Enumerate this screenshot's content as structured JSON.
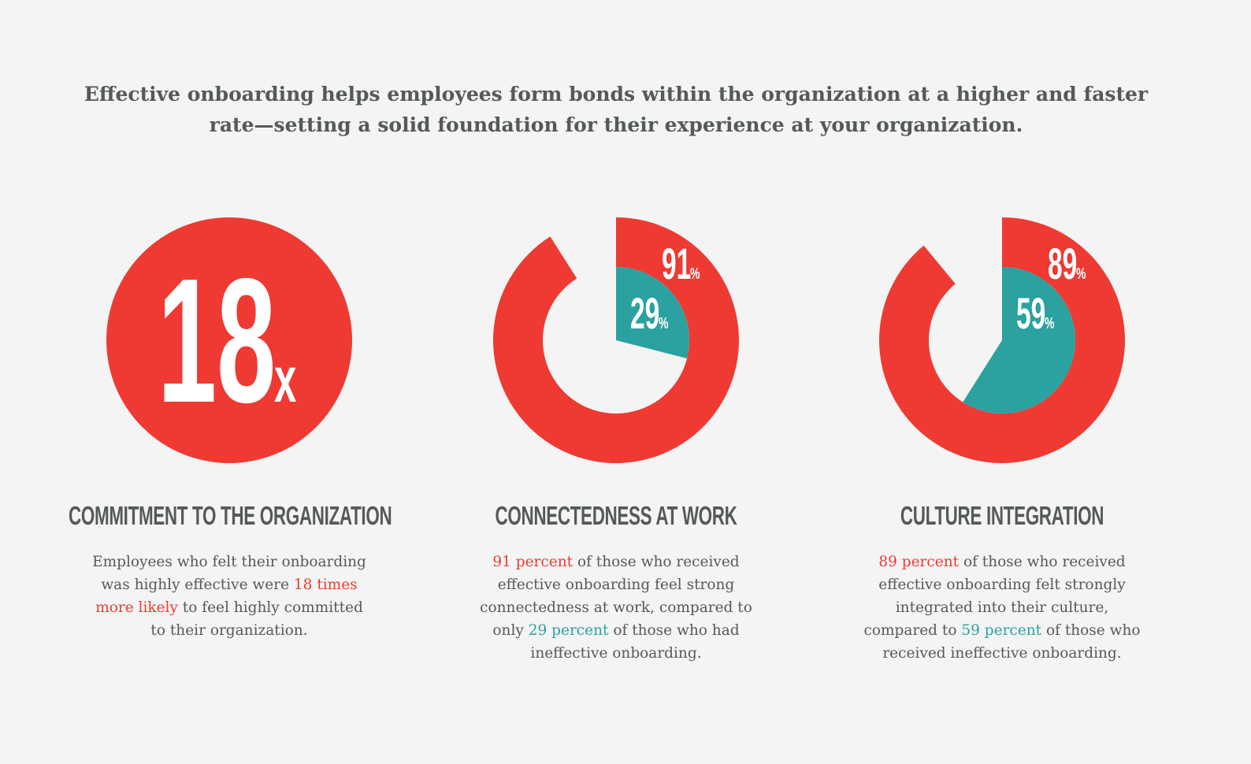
{
  "headline": {
    "lines": [
      "Effective onboarding helps employees form bonds within the organization at a higher and faster",
      "rate—setting a solid foundation for their experience at your organization."
    ]
  },
  "colors": {
    "red": "#ee3a33",
    "teal": "#2ba29f",
    "background": "#f3f4f3",
    "text": "#555a57"
  },
  "chart_data": [
    {
      "type": "stat-circle",
      "value_label": "18",
      "unit_label": "x",
      "title": "COMMITMENT TO THE ORGANIZATION",
      "body_lines": [
        [
          {
            "text": "Employees who felt their onboarding",
            "style": ""
          }
        ],
        [
          {
            "text": "was highly effective were ",
            "style": ""
          },
          {
            "text": "18 times",
            "style": "red"
          }
        ],
        [
          {
            "text": "more likely",
            "style": "red"
          },
          {
            "text": " to feel highly committed",
            "style": ""
          }
        ],
        [
          {
            "text": "to their organization.",
            "style": ""
          }
        ]
      ]
    },
    {
      "type": "pie",
      "series": [
        {
          "value": 91,
          "label": "91",
          "unit": "%",
          "color": "#ee3a33"
        },
        {
          "value": 29,
          "label": "29",
          "unit": "%",
          "color": "#2ba29f"
        }
      ],
      "title": "CONNECTEDNESS AT WORK",
      "body_lines": [
        [
          {
            "text": "91 percent",
            "style": "red"
          },
          {
            "text": " of those who received",
            "style": ""
          }
        ],
        [
          {
            "text": "effective onboarding feel strong",
            "style": ""
          }
        ],
        [
          {
            "text": "connectedness at work, compared to",
            "style": ""
          }
        ],
        [
          {
            "text": "only ",
            "style": ""
          },
          {
            "text": "29 percent",
            "style": "teal"
          },
          {
            "text": " of those who had",
            "style": ""
          }
        ],
        [
          {
            "text": "ineffective onboarding.",
            "style": ""
          }
        ]
      ]
    },
    {
      "type": "pie",
      "series": [
        {
          "value": 89,
          "label": "89",
          "unit": "%",
          "color": "#ee3a33"
        },
        {
          "value": 59,
          "label": "59",
          "unit": "%",
          "color": "#2ba29f"
        }
      ],
      "title": "CULTURE INTEGRATION",
      "body_lines": [
        [
          {
            "text": "89 percent",
            "style": "red"
          },
          {
            "text": " of those who received",
            "style": ""
          }
        ],
        [
          {
            "text": "effective onboarding felt strongly",
            "style": ""
          }
        ],
        [
          {
            "text": "integrated into their culture,",
            "style": ""
          }
        ],
        [
          {
            "text": "compared to ",
            "style": ""
          },
          {
            "text": "59 percent",
            "style": "teal"
          },
          {
            "text": " of those who",
            "style": ""
          }
        ],
        [
          {
            "text": "received ineffective onboarding.",
            "style": ""
          }
        ]
      ]
    }
  ]
}
